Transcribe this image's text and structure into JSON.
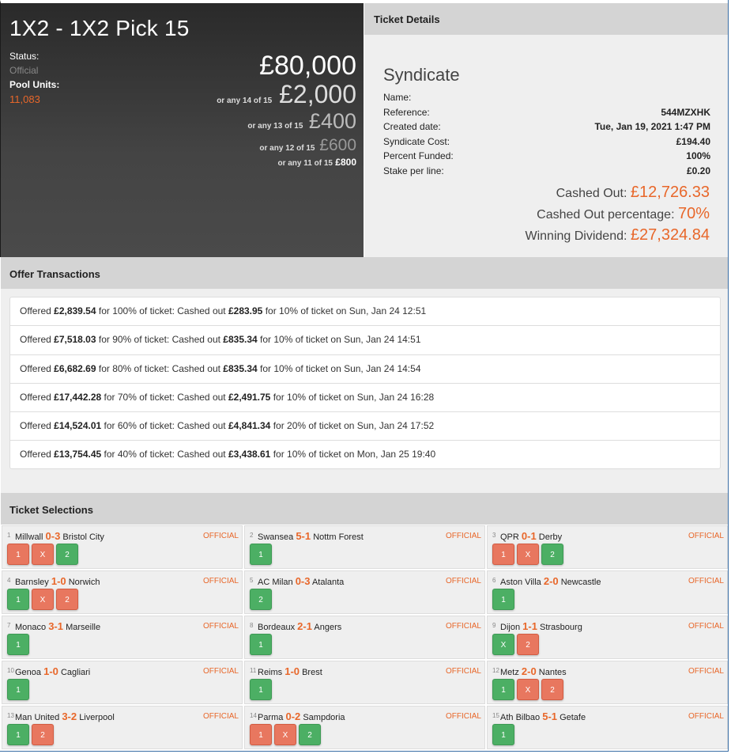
{
  "header": {
    "title": "1X2 - 1X2 Pick 15",
    "status_label": "Status:",
    "status_value": "Official",
    "pool_label": "Pool Units:",
    "pool_value": "11,083"
  },
  "prizes": {
    "top": "£80,000",
    "p14_prefix": "or any 14 of 15",
    "p14": "£2,000",
    "p13_prefix": "or any 13 of 15",
    "p13": "£400",
    "p12_prefix": "or any 12 of 15",
    "p12": "£600",
    "p11_prefix": "or any 11 of 15",
    "p11": "£800"
  },
  "details": {
    "heading": "Ticket Details",
    "syndicate": "Syndicate",
    "rows": [
      {
        "k": "Name:",
        "v": ""
      },
      {
        "k": "Reference:",
        "v": "544MZXHK"
      },
      {
        "k": "Created date:",
        "v": "Tue, Jan 19, 2021 1:47 PM"
      },
      {
        "k": "Syndicate Cost:",
        "v": "£194.40"
      },
      {
        "k": "Percent Funded:",
        "v": "100%"
      },
      {
        "k": "Stake per line:",
        "v": "£0.20"
      }
    ],
    "cashed_out_label": "Cashed Out:",
    "cashed_out": "£12,726.33",
    "cashed_pct_label": "Cashed Out percentage:",
    "cashed_pct": "70%",
    "dividend_label": "Winning Dividend:",
    "dividend": "£27,324.84"
  },
  "offers": {
    "heading": "Offer Transactions",
    "items": [
      {
        "a": "Offered ",
        "b": "£2,839.54",
        "c": " for 100% of ticket: Cashed out ",
        "d": "£283.95",
        "e": " for 10% of ticket on Sun, Jan 24 12:51"
      },
      {
        "a": "Offered ",
        "b": "£7,518.03",
        "c": " for 90% of ticket: Cashed out ",
        "d": "£835.34",
        "e": " for 10% of ticket on Sun, Jan 24 14:51"
      },
      {
        "a": "Offered ",
        "b": "£6,682.69",
        "c": " for 80% of ticket: Cashed out ",
        "d": "£835.34",
        "e": " for 10% of ticket on Sun, Jan 24 14:54"
      },
      {
        "a": "Offered ",
        "b": "£17,442.28",
        "c": " for 70% of ticket: Cashed out ",
        "d": "£2,491.75",
        "e": " for 10% of ticket on Sun, Jan 24 16:28"
      },
      {
        "a": "Offered ",
        "b": "£14,524.01",
        "c": " for 60% of ticket: Cashed out ",
        "d": "£4,841.34",
        "e": " for 20% of ticket on Sun, Jan 24 17:52"
      },
      {
        "a": "Offered ",
        "b": "£13,754.45",
        "c": " for 40% of ticket: Cashed out ",
        "d": "£3,438.61",
        "e": " for 10% of ticket on Mon, Jan 25 19:40"
      }
    ]
  },
  "selections": {
    "heading": "Ticket Selections",
    "official": "OFFICIAL",
    "colors": {
      "win": "#4caf64",
      "lose": "#e8775f",
      "accent": "#e8672a"
    },
    "matches": [
      {
        "n": "1",
        "home": "Millwall",
        "score": "0-3",
        "away": "Bristol City",
        "picks": [
          [
            "1",
            "r"
          ],
          [
            "X",
            "r"
          ],
          [
            "2",
            "g"
          ]
        ]
      },
      {
        "n": "2",
        "home": "Swansea",
        "score": "5-1",
        "away": "Nottm Forest",
        "picks": [
          [
            "1",
            "g"
          ]
        ]
      },
      {
        "n": "3",
        "home": "QPR",
        "score": "0-1",
        "away": "Derby",
        "picks": [
          [
            "1",
            "r"
          ],
          [
            "X",
            "r"
          ],
          [
            "2",
            "g"
          ]
        ]
      },
      {
        "n": "4",
        "home": "Barnsley",
        "score": "1-0",
        "away": "Norwich",
        "picks": [
          [
            "1",
            "g"
          ],
          [
            "X",
            "r"
          ],
          [
            "2",
            "r"
          ]
        ]
      },
      {
        "n": "5",
        "home": "AC Milan",
        "score": "0-3",
        "away": "Atalanta",
        "picks": [
          [
            "2",
            "g"
          ]
        ]
      },
      {
        "n": "6",
        "home": "Aston Villa",
        "score": "2-0",
        "away": "Newcastle",
        "picks": [
          [
            "1",
            "g"
          ]
        ]
      },
      {
        "n": "7",
        "home": "Monaco",
        "score": "3-1",
        "away": "Marseille",
        "picks": [
          [
            "1",
            "g"
          ]
        ]
      },
      {
        "n": "8",
        "home": "Bordeaux",
        "score": "2-1",
        "away": "Angers",
        "picks": [
          [
            "1",
            "g"
          ]
        ]
      },
      {
        "n": "9",
        "home": "Dijon",
        "score": "1-1",
        "away": "Strasbourg",
        "picks": [
          [
            "X",
            "g"
          ],
          [
            "2",
            "r"
          ]
        ]
      },
      {
        "n": "10",
        "home": "Genoa",
        "score": "1-0",
        "away": "Cagliari",
        "picks": [
          [
            "1",
            "g"
          ]
        ]
      },
      {
        "n": "11",
        "home": "Reims",
        "score": "1-0",
        "away": "Brest",
        "picks": [
          [
            "1",
            "g"
          ]
        ]
      },
      {
        "n": "12",
        "home": "Metz",
        "score": "2-0",
        "away": "Nantes",
        "picks": [
          [
            "1",
            "g"
          ],
          [
            "X",
            "r"
          ],
          [
            "2",
            "r"
          ]
        ]
      },
      {
        "n": "13",
        "home": "Man United",
        "score": "3-2",
        "away": "Liverpool",
        "picks": [
          [
            "1",
            "g"
          ],
          [
            "2",
            "r"
          ]
        ]
      },
      {
        "n": "14",
        "home": "Parma",
        "score": "0-2",
        "away": "Sampdoria",
        "picks": [
          [
            "1",
            "r"
          ],
          [
            "X",
            "r"
          ],
          [
            "2",
            "g"
          ]
        ]
      },
      {
        "n": "15",
        "home": "Ath Bilbao",
        "score": "5-1",
        "away": "Getafe",
        "picks": [
          [
            "1",
            "g"
          ]
        ]
      }
    ]
  }
}
